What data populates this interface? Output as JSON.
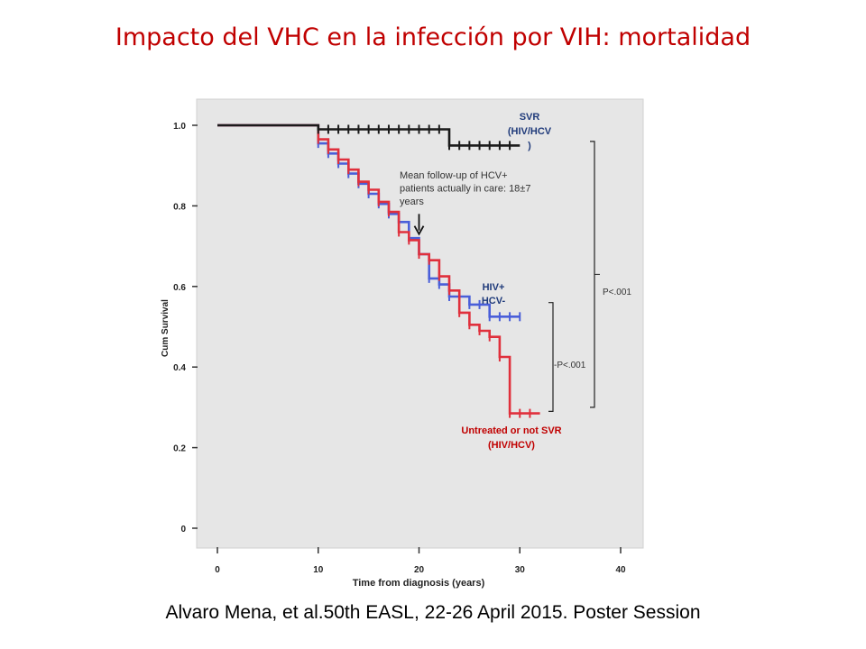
{
  "slide": {
    "title": "Impacto del VHC en la infección por VIH: mortalidad",
    "citation": "Alvaro Mena, et al.50th EASL, 22-26 April 2015. Poster Session"
  },
  "chart_data": {
    "type": "line",
    "title": "",
    "xlabel": "Time from diagnosis (years)",
    "ylabel": "Cum Survival",
    "xlim": [
      0,
      40
    ],
    "ylim": [
      0,
      1.0
    ],
    "xticks": [
      0,
      10,
      20,
      30,
      40
    ],
    "yticks": [
      {
        "value": 0,
        "label": "0"
      },
      {
        "value": 0.2,
        "label": "0.2"
      },
      {
        "value": 0.4,
        "label": "0.4"
      },
      {
        "value": 0.6,
        "label": "0.6"
      },
      {
        "value": 0.8,
        "label": "0.8"
      },
      {
        "value": 1.0,
        "label": "1.0"
      }
    ],
    "plot_background": "#e6e6e6",
    "series": [
      {
        "name": "HIV+ HCV-",
        "label_lines": [
          "HIV+",
          "HCV-"
        ],
        "color": "#4a5fd9",
        "label_color": "#1f3a7a",
        "steps": [
          [
            0,
            1.0
          ],
          [
            10,
            1.0
          ],
          [
            10,
            0.955
          ],
          [
            11,
            0.955
          ],
          [
            11,
            0.93
          ],
          [
            12,
            0.93
          ],
          [
            12,
            0.905
          ],
          [
            13,
            0.905
          ],
          [
            13,
            0.88
          ],
          [
            14,
            0.88
          ],
          [
            14,
            0.855
          ],
          [
            15,
            0.855
          ],
          [
            15,
            0.83
          ],
          [
            16,
            0.83
          ],
          [
            16,
            0.805
          ],
          [
            17,
            0.805
          ],
          [
            17,
            0.78
          ],
          [
            18,
            0.78
          ],
          [
            18,
            0.76
          ],
          [
            19,
            0.76
          ],
          [
            19,
            0.72
          ],
          [
            20,
            0.72
          ],
          [
            20,
            0.68
          ],
          [
            21,
            0.68
          ],
          [
            21,
            0.62
          ],
          [
            22,
            0.62
          ],
          [
            22,
            0.605
          ],
          [
            23,
            0.605
          ],
          [
            23,
            0.575
          ],
          [
            25,
            0.575
          ],
          [
            25,
            0.555
          ],
          [
            27,
            0.555
          ],
          [
            27,
            0.525
          ],
          [
            30,
            0.525
          ]
        ],
        "censor_marks": [
          [
            10,
            0.955
          ],
          [
            11,
            0.93
          ],
          [
            12,
            0.905
          ],
          [
            13,
            0.88
          ],
          [
            14,
            0.855
          ],
          [
            15,
            0.83
          ],
          [
            16,
            0.805
          ],
          [
            17,
            0.78
          ],
          [
            18,
            0.76
          ],
          [
            19,
            0.72
          ],
          [
            20,
            0.68
          ],
          [
            21,
            0.62
          ],
          [
            22,
            0.605
          ],
          [
            23,
            0.575
          ],
          [
            24,
            0.575
          ],
          [
            25,
            0.555
          ],
          [
            26,
            0.555
          ],
          [
            27,
            0.525
          ],
          [
            28,
            0.525
          ],
          [
            29,
            0.525
          ],
          [
            30,
            0.525
          ]
        ]
      },
      {
        "name": "Untreated or not SVR (HIV/HCV)",
        "label_lines": [
          "Untreated  or not SVR",
          "(HIV/HCV)"
        ],
        "color": "#e0303c",
        "label_color": "#c00000",
        "steps": [
          [
            0,
            1.0
          ],
          [
            10,
            1.0
          ],
          [
            10,
            0.965
          ],
          [
            11,
            0.965
          ],
          [
            11,
            0.94
          ],
          [
            12,
            0.94
          ],
          [
            12,
            0.915
          ],
          [
            13,
            0.915
          ],
          [
            13,
            0.89
          ],
          [
            14,
            0.89
          ],
          [
            14,
            0.86
          ],
          [
            15,
            0.86
          ],
          [
            15,
            0.84
          ],
          [
            16,
            0.84
          ],
          [
            16,
            0.81
          ],
          [
            17,
            0.81
          ],
          [
            17,
            0.785
          ],
          [
            18,
            0.785
          ],
          [
            18,
            0.735
          ],
          [
            19,
            0.735
          ],
          [
            19,
            0.715
          ],
          [
            20,
            0.715
          ],
          [
            20,
            0.68
          ],
          [
            21,
            0.68
          ],
          [
            21,
            0.665
          ],
          [
            22,
            0.665
          ],
          [
            22,
            0.625
          ],
          [
            23,
            0.625
          ],
          [
            23,
            0.59
          ],
          [
            24,
            0.59
          ],
          [
            24,
            0.535
          ],
          [
            25,
            0.535
          ],
          [
            25,
            0.505
          ],
          [
            26,
            0.505
          ],
          [
            26,
            0.49
          ],
          [
            27,
            0.49
          ],
          [
            27,
            0.475
          ],
          [
            28,
            0.475
          ],
          [
            28,
            0.425
          ],
          [
            29,
            0.425
          ],
          [
            29,
            0.285
          ],
          [
            32,
            0.285
          ]
        ],
        "censor_marks": [
          [
            10,
            0.965
          ],
          [
            11,
            0.94
          ],
          [
            12,
            0.915
          ],
          [
            13,
            0.89
          ],
          [
            14,
            0.86
          ],
          [
            15,
            0.84
          ],
          [
            16,
            0.81
          ],
          [
            17,
            0.785
          ],
          [
            18,
            0.735
          ],
          [
            19,
            0.715
          ],
          [
            20,
            0.68
          ],
          [
            21,
            0.665
          ],
          [
            22,
            0.625
          ],
          [
            23,
            0.59
          ],
          [
            24,
            0.535
          ],
          [
            25,
            0.505
          ],
          [
            26,
            0.49
          ],
          [
            27,
            0.475
          ],
          [
            28,
            0.425
          ],
          [
            29,
            0.285
          ],
          [
            30,
            0.285
          ],
          [
            31,
            0.285
          ]
        ]
      },
      {
        "name": "SVR (HIV/HCV)",
        "label_lines": [
          "SVR",
          "(HIV/HCV",
          ")"
        ],
        "color": "#1a1a1a",
        "label_color": "#1f3a7a",
        "steps": [
          [
            0,
            1.0
          ],
          [
            10,
            1.0
          ],
          [
            10,
            0.99
          ],
          [
            23,
            0.99
          ],
          [
            23,
            0.95
          ],
          [
            30,
            0.95
          ]
        ],
        "censor_marks": [
          [
            10,
            0.99
          ],
          [
            11,
            0.99
          ],
          [
            12,
            0.99
          ],
          [
            13,
            0.99
          ],
          [
            14,
            0.99
          ],
          [
            15,
            0.99
          ],
          [
            16,
            0.99
          ],
          [
            17,
            0.99
          ],
          [
            18,
            0.99
          ],
          [
            19,
            0.99
          ],
          [
            20,
            0.99
          ],
          [
            21,
            0.99
          ],
          [
            22,
            0.99
          ],
          [
            23,
            0.95
          ],
          [
            24,
            0.95
          ],
          [
            25,
            0.95
          ],
          [
            26,
            0.95
          ],
          [
            27,
            0.95
          ],
          [
            28,
            0.95
          ],
          [
            29,
            0.95
          ]
        ]
      }
    ],
    "annotations": {
      "followup": {
        "lines": [
          "Mean follow-up of HCV+",
          "patients actually  in care: 18±7",
          "years"
        ],
        "arrow_x": 20,
        "arrow_from_y": 0.78,
        "arrow_to_y": 0.73
      },
      "pvalues": [
        {
          "label": "P<.001",
          "from_y": 0.96,
          "to_y": 0.3
        },
        {
          "label": "-P<.001",
          "from_y": 0.56,
          "to_y": 0.29
        }
      ]
    }
  }
}
